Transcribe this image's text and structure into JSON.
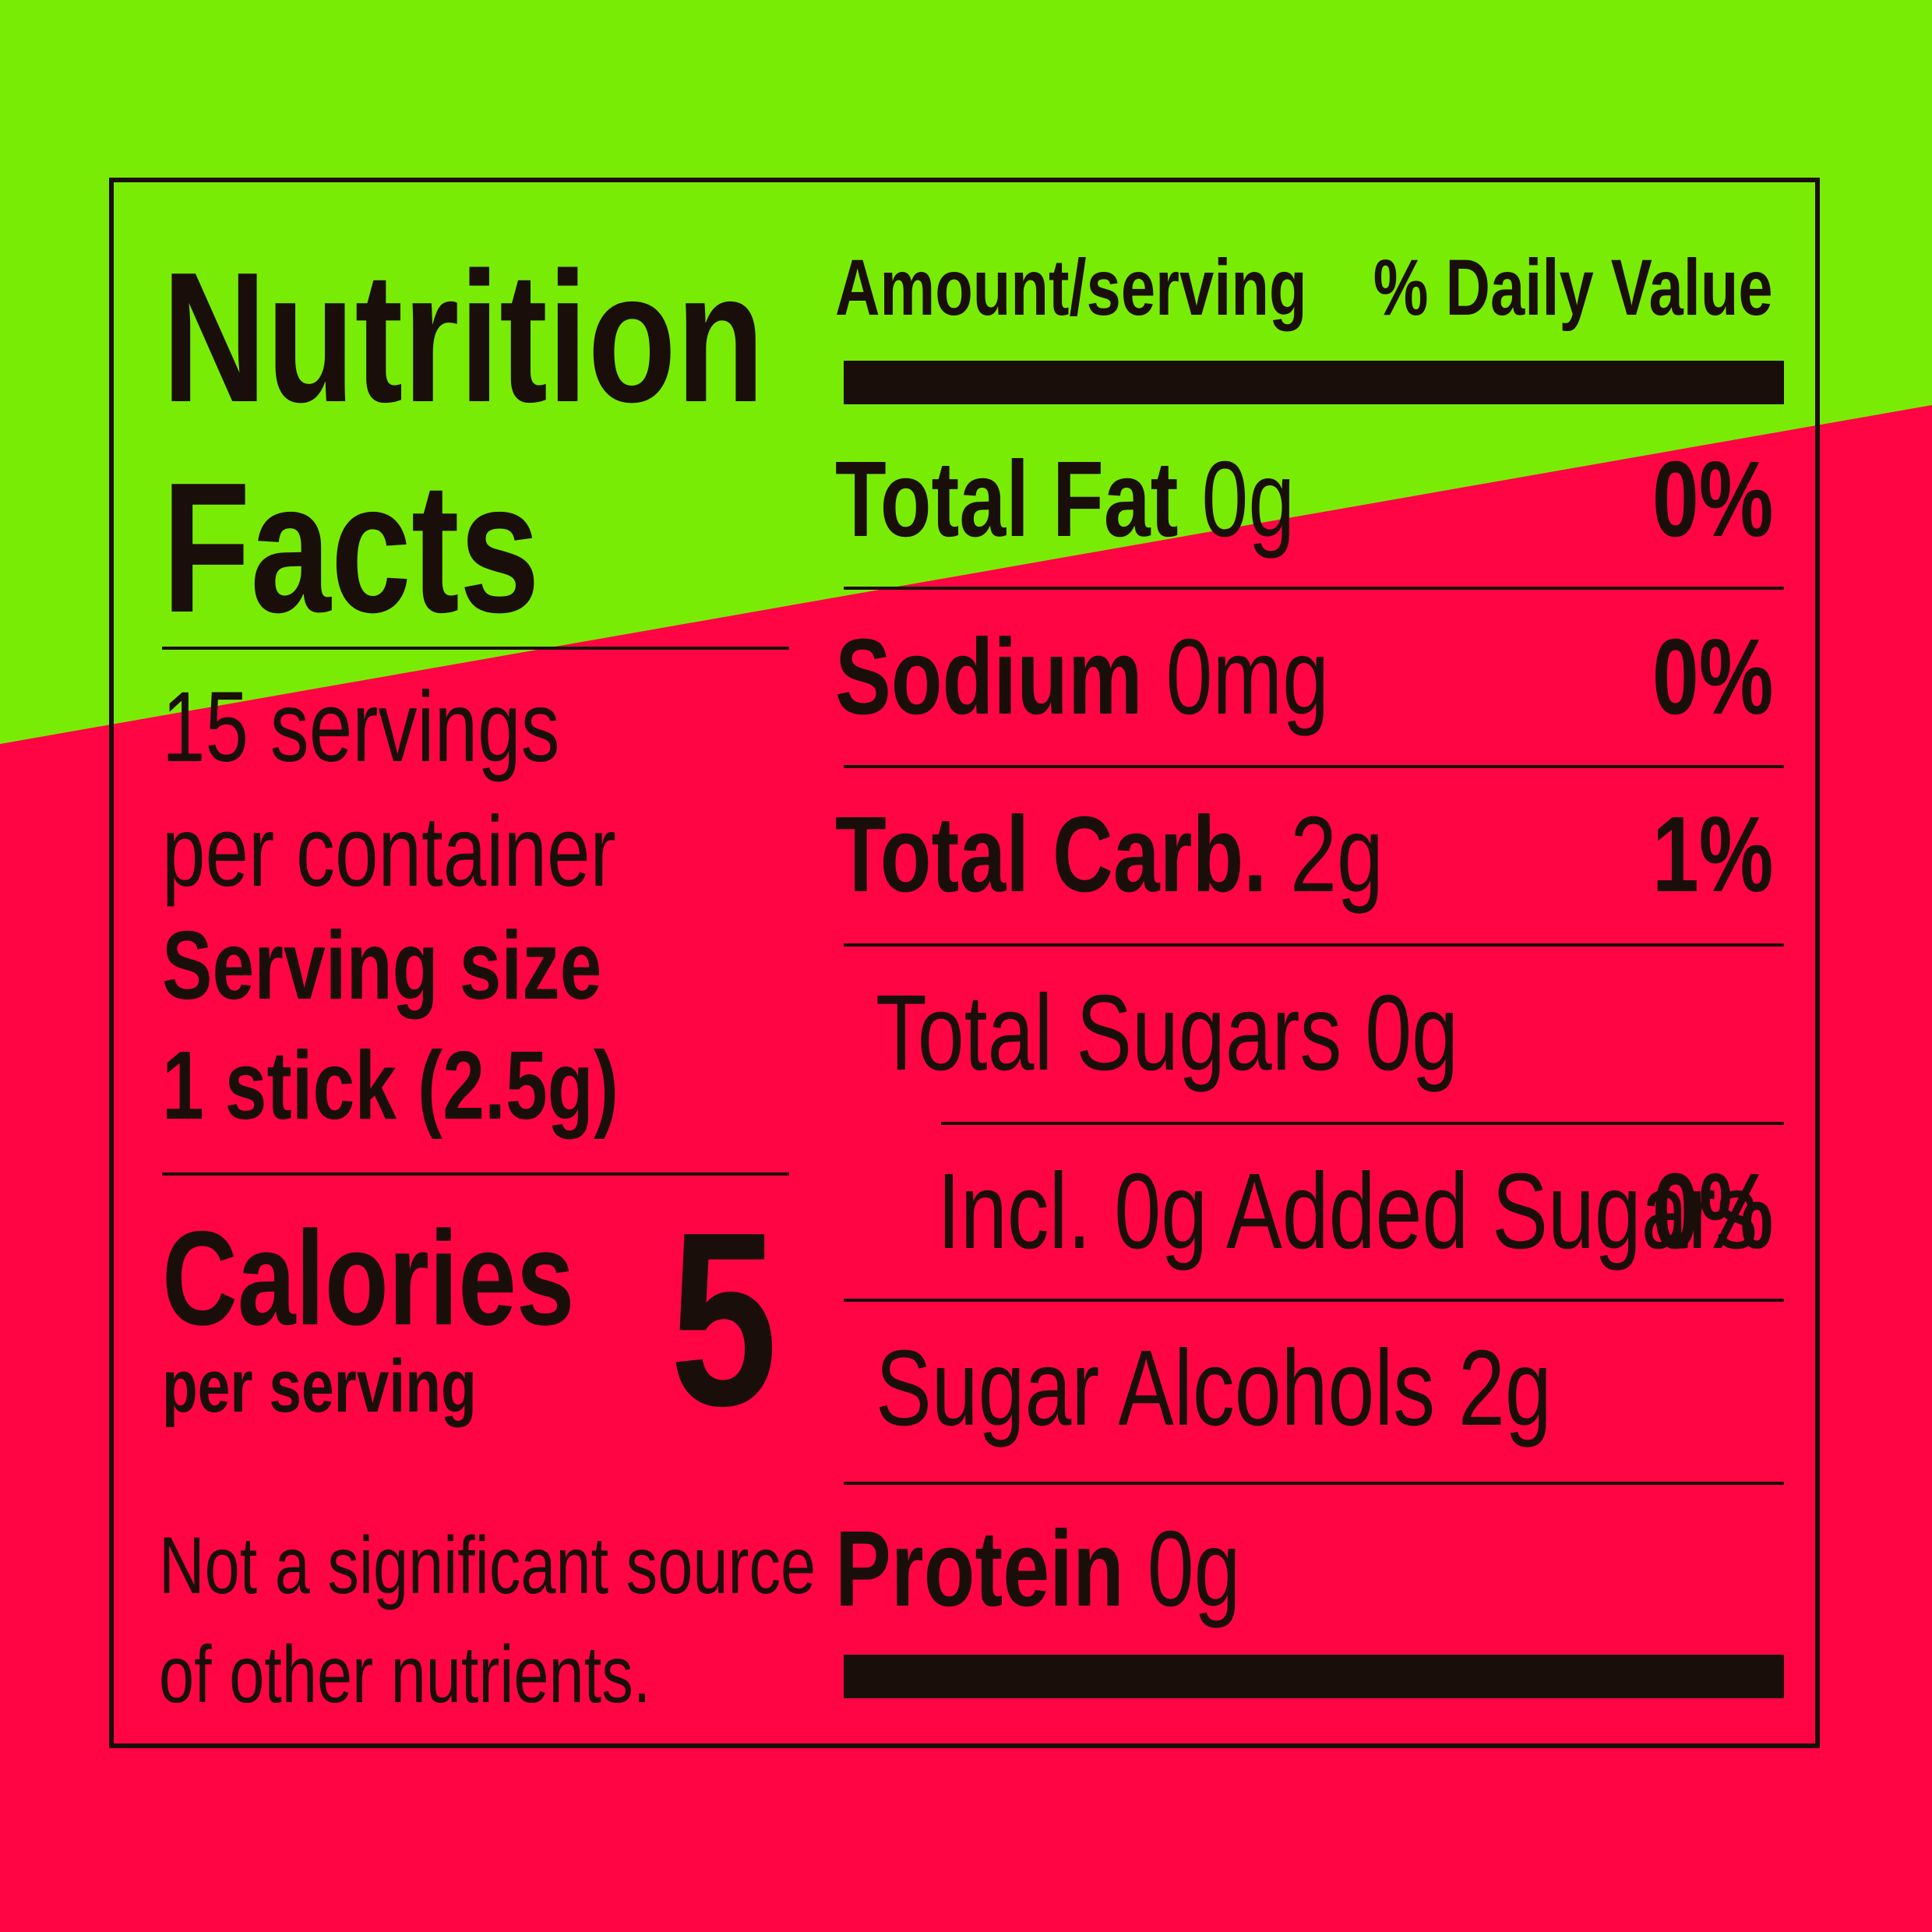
{
  "colors": {
    "background_top": "#79ec06",
    "background_bottom": "#ff0543",
    "ink": "#1a0e0a"
  },
  "left": {
    "title_line1": "Nutrition",
    "title_line2": "Facts",
    "servings_line1": "15 servings",
    "servings_line2": "per container",
    "serving_size_label": "Serving size",
    "serving_size_value": "1 stick (2.5g)",
    "calories_label": "Calories",
    "calories_sub": "per serving",
    "calories_value": "5",
    "footnote_line1": "Not a significant source",
    "footnote_line2": "of other nutrients."
  },
  "right": {
    "header_amount": "Amount/serving",
    "header_dv": "% Daily Value",
    "rows": [
      {
        "name": "Total Fat",
        "amount": "0g",
        "dv": "0%"
      },
      {
        "name": "Sodium",
        "amount": "0mg",
        "dv": "0%"
      },
      {
        "name": "Total Carb.",
        "amount": "2g",
        "dv": "1%"
      },
      {
        "name": "Total Sugars 0g",
        "amount": "",
        "dv": ""
      },
      {
        "name": "Incl. 0g Added Sugars",
        "amount": "",
        "dv": "0%"
      },
      {
        "name": "Sugar Alcohols 2g",
        "amount": "",
        "dv": ""
      },
      {
        "name": "Protein",
        "amount": "0g",
        "dv": ""
      }
    ]
  }
}
